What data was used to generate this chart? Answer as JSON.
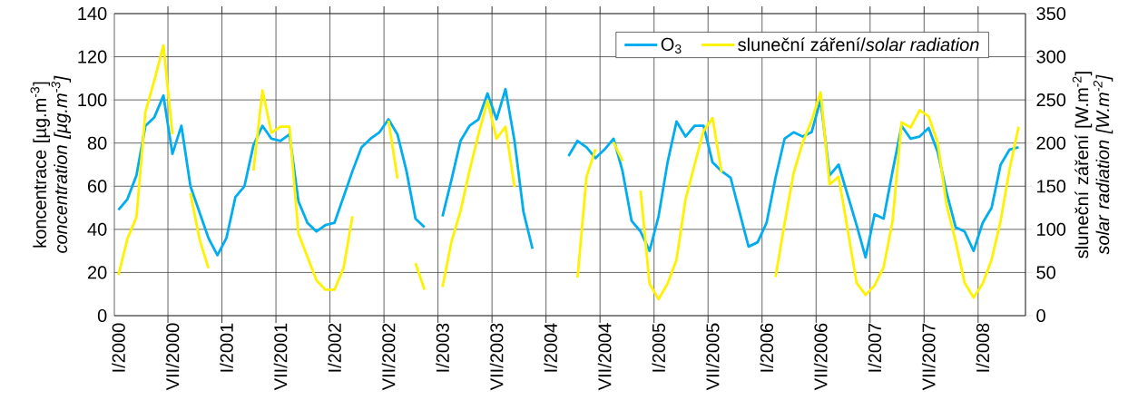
{
  "chart_data": {
    "type": "line",
    "ylabel": "koncentrace [µg.m$^{-3}$] *concentration [µg.m$^{-3}$]*",
    "y2label": "sluneční záření [W.m$^{-2}$] *solar radiation [W.m$^{-2}$]*",
    "categories": [
      "I/2000",
      null,
      null,
      null,
      null,
      null,
      "VII/2000",
      null,
      null,
      null,
      null,
      null,
      "I/2001",
      null,
      null,
      null,
      null,
      null,
      "VII/2001",
      null,
      null,
      null,
      null,
      null,
      "I/2002",
      null,
      null,
      null,
      null,
      null,
      "VII/2002",
      null,
      null,
      null,
      null,
      null,
      "I/2003",
      null,
      null,
      null,
      null,
      null,
      "VII/2003",
      null,
      null,
      null,
      null,
      null,
      "I/2004",
      null,
      null,
      null,
      null,
      null,
      "VII/2004",
      null,
      null,
      null,
      null,
      null,
      "I/2005",
      null,
      null,
      null,
      null,
      null,
      "VII/2005",
      null,
      null,
      null,
      null,
      null,
      "I/2006",
      null,
      null,
      null,
      null,
      null,
      "VII/2006",
      null,
      null,
      null,
      null,
      null,
      "I/2007",
      null,
      null,
      null,
      null,
      null,
      "VII/2007",
      null,
      null,
      null,
      null,
      null,
      "I/2008",
      null,
      null,
      null,
      null
    ],
    "series": [
      {
        "name": "O$_{3}$",
        "color": "#00aeef",
        "values": [
          49,
          54,
          65,
          88,
          92,
          102,
          75,
          88,
          60,
          48,
          36,
          28,
          36,
          55,
          60,
          79,
          88,
          82,
          81,
          84,
          53,
          43,
          39,
          42,
          43,
          55,
          67,
          78,
          82,
          85,
          91,
          84,
          67,
          45,
          41,
          null,
          46,
          63,
          81,
          88,
          91,
          103,
          91,
          105,
          81,
          48,
          31,
          null,
          null,
          null,
          74,
          81,
          78,
          73,
          77,
          82,
          67,
          44,
          39,
          30,
          46,
          71,
          90,
          83,
          88,
          88,
          71,
          67,
          64,
          48,
          32,
          34,
          43,
          64,
          82,
          85,
          83,
          85,
          100,
          65,
          70,
          56,
          42,
          27,
          47,
          45,
          67,
          88,
          82,
          83,
          87,
          76,
          57,
          41,
          39,
          30,
          43,
          50,
          70,
          77,
          78
        ]
      },
      {
        "name": "sluneční záření/*solar radiation*",
        "color": "#fff200",
        "axis": "y2",
        "values": [
          47,
          89,
          114,
          236,
          273,
          313,
          210,
          null,
          142,
          89,
          55,
          null,
          null,
          null,
          null,
          168,
          261,
          212,
          219,
          219,
          95,
          68,
          41,
          30,
          30,
          55,
          115,
          null,
          null,
          null,
          226,
          159,
          null,
          61,
          30,
          null,
          33,
          86,
          121,
          168,
          210,
          249,
          205,
          219,
          149,
          null,
          null,
          null,
          null,
          null,
          null,
          44,
          161,
          193,
          null,
          201,
          179,
          null,
          145,
          37,
          19,
          37,
          65,
          135,
          175,
          214,
          229,
          166,
          null,
          null,
          null,
          null,
          null,
          45,
          107,
          165,
          200,
          226,
          259,
          152,
          161,
          100,
          38,
          24,
          35,
          56,
          110,
          224,
          218,
          238,
          231,
          201,
          128,
          86,
          38,
          21,
          37,
          65,
          110,
          170,
          219
        ]
      }
    ],
    "ylim": [
      0,
      140
    ],
    "yticks": [
      0,
      20,
      40,
      60,
      80,
      100,
      120,
      140
    ],
    "y2lim": [
      0,
      350
    ],
    "y2ticks": [
      0,
      50,
      100,
      150,
      200,
      250,
      300,
      350
    ],
    "grid": true,
    "legend": "top right"
  }
}
